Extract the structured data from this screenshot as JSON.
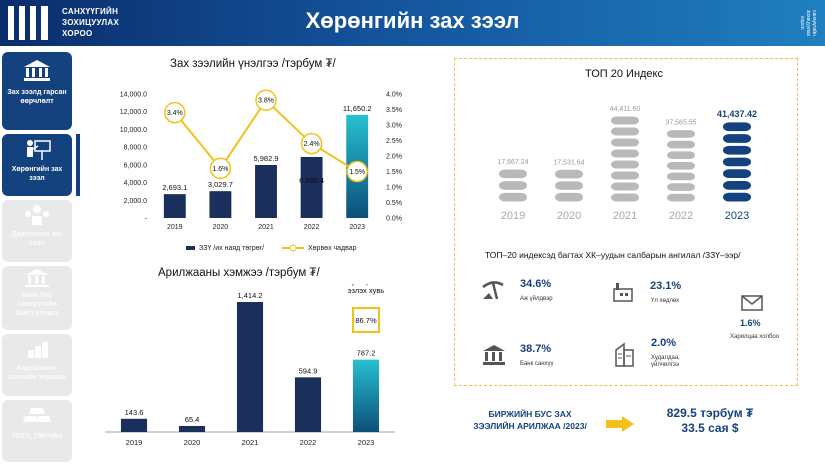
{
  "header": {
    "org_line1": "САНХҮҮГИЙН",
    "org_line2": "ЗОХИЦУУЛАХ",
    "org_line3": "ХОРОО",
    "title": "Хөрөнгийн зах зээл",
    "side_logo_text": "санхүүгийн зохицуулах хороо"
  },
  "sidebar": {
    "items": [
      {
        "label": "Зах зээлд гарсан өөрчлөлт",
        "icon": "building-icon"
      },
      {
        "label": "Хөрөнгийн зах зээл",
        "icon": "presenter-icon"
      },
      {
        "label": "Даатгалын зах зээл",
        "icon": "people-icon"
      },
      {
        "label": "Банк бус санхүүгийн байгууллага",
        "icon": "bank-icon"
      },
      {
        "label": "Хадгаламж, зээлийн хоршоо",
        "icon": "coins-icon"
      },
      {
        "label": "ҮХХЭ, УМҮЧАЗ",
        "icon": "gold-bars-icon"
      }
    ]
  },
  "colors": {
    "navy": "#1b2f5c",
    "teal": "#1aa3b8",
    "yellow": "#f2c21a",
    "brand": "#14427e",
    "bar_grey": "#b9b9b9"
  },
  "chart_data": [
    {
      "type": "bar",
      "title": "Зах зээлийн үнэлгээ /тэрбум ₮/",
      "categories": [
        "2019",
        "2020",
        "2021",
        "2022",
        "2023"
      ],
      "series": [
        {
          "name": "ЗЗҮ /их наяд төгрөг/",
          "values": [
            2693.1,
            3029.7,
            5982.9,
            6890.4,
            11650.2
          ],
          "labels": [
            "2,693.1",
            "3,029.7",
            "5,982.9",
            "6,890.4",
            "11,650.2"
          ],
          "axis": "left"
        },
        {
          "name": "Хөрвөх чадвар",
          "type": "line",
          "values": [
            3.4,
            1.6,
            3.8,
            2.4,
            1.5
          ],
          "labels": [
            "3.4%",
            "1.6%",
            "3.8%",
            "2.4%",
            "1.5%"
          ],
          "axis": "right"
        }
      ],
      "ylim": [
        0,
        14000
      ],
      "y2lim": [
        0,
        4.0
      ],
      "yticks": [
        "14,000.0",
        "12,000.0",
        "10,000.0",
        "8,000.0",
        "6,000.0",
        "4,000.0",
        "2,000.0",
        "-"
      ],
      "y2ticks": [
        "4.0%",
        "3.5%",
        "3.0%",
        "2.5%",
        "2.0%",
        "1.5%",
        "1.0%",
        "0.5%",
        "0.0%"
      ],
      "legend": "bottom"
    },
    {
      "type": "bar",
      "title": "Арилжааны хэмжээ /тэрбум ₮/",
      "categories": [
        "2019",
        "2020",
        "2021",
        "2022",
        "2023"
      ],
      "values": [
        143.6,
        65.4,
        1414.2,
        594.9,
        787.2
      ],
      "labels": [
        "143.6",
        "65.4",
        "1,414.2",
        "594.9",
        "787.2"
      ],
      "annotation": {
        "title": "Хувьцааны эзлэх хувь",
        "value": "86.7%"
      }
    },
    {
      "type": "bar",
      "title": "ТОП 20 Индекс",
      "categories": [
        "2019",
        "2020",
        "2021",
        "2022",
        "2023"
      ],
      "values": [
        17667.24,
        17531.64,
        44411.6,
        37565.55,
        41437.42
      ],
      "labels": [
        "17,667.24",
        "17,531.64",
        "44,411.60",
        "37,565.55",
        "41,437.42"
      ]
    }
  ],
  "breakdown": {
    "title": "ТОП–20 индексэд багтах ХК–уудын салбарын ангилал /ЗЗҮ–ээр/",
    "items": [
      {
        "pct": "34.6%",
        "label": "Аж үйлдвэр",
        "icon": "mining-icon"
      },
      {
        "pct": "23.1%",
        "label": "Үл хөдлөх",
        "icon": "factory-icon"
      },
      {
        "pct": "1.6%",
        "label": "Харилцаа холбоо",
        "icon": "envelope-icon"
      },
      {
        "pct": "38.7%",
        "label": "Банк санхүү",
        "icon": "bank-money-icon"
      },
      {
        "pct": "2.0%",
        "label": "Худалдаа, үйлчилгээ",
        "icon": "buildings-icon"
      }
    ]
  },
  "bottom": {
    "note_line1": "БИРЖИЙН БУС ЗАХ",
    "note_line2": "ЗЭЭЛИЙН АРИЛЖАА /2023/",
    "value_line1": "829.5 тэрбум ₮",
    "value_line2": "33.5 сая $"
  }
}
